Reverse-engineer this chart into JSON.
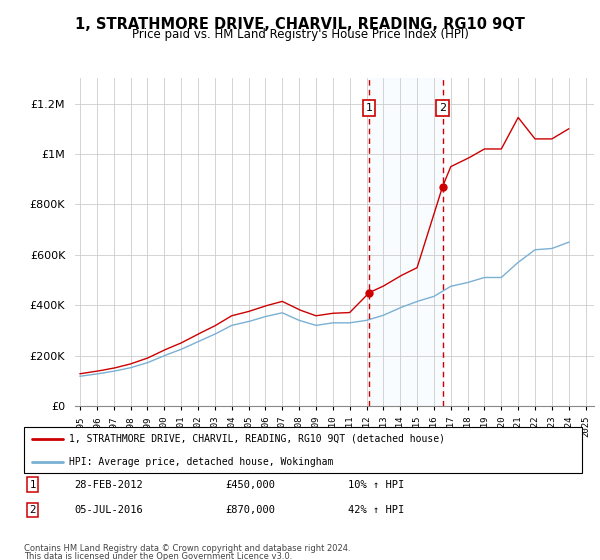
{
  "title": "1, STRATHMORE DRIVE, CHARVIL, READING, RG10 9QT",
  "subtitle": "Price paid vs. HM Land Registry's House Price Index (HPI)",
  "ylim": [
    0,
    1300000
  ],
  "yticks": [
    0,
    200000,
    400000,
    600000,
    800000,
    1000000,
    1200000
  ],
  "grid_color": "#cccccc",
  "sale1_date": 2012.16,
  "sale1_price": 450000,
  "sale1_label": "28-FEB-2012",
  "sale1_hpi_pct": "10% ↑ HPI",
  "sale2_date": 2016.51,
  "sale2_price": 870000,
  "sale2_label": "05-JUL-2016",
  "sale2_hpi_pct": "42% ↑ HPI",
  "legend_line1": "1, STRATHMORE DRIVE, CHARVIL, READING, RG10 9QT (detached house)",
  "legend_line2": "HPI: Average price, detached house, Wokingham",
  "footer1": "Contains HM Land Registry data © Crown copyright and database right 2024.",
  "footer2": "This data is licensed under the Open Government Licence v3.0.",
  "hpi_color": "#7ab0d4",
  "price_color": "#cc0000",
  "shade_color": "#ddeeff",
  "xlim_left": 1994.7,
  "xlim_right": 2025.5
}
